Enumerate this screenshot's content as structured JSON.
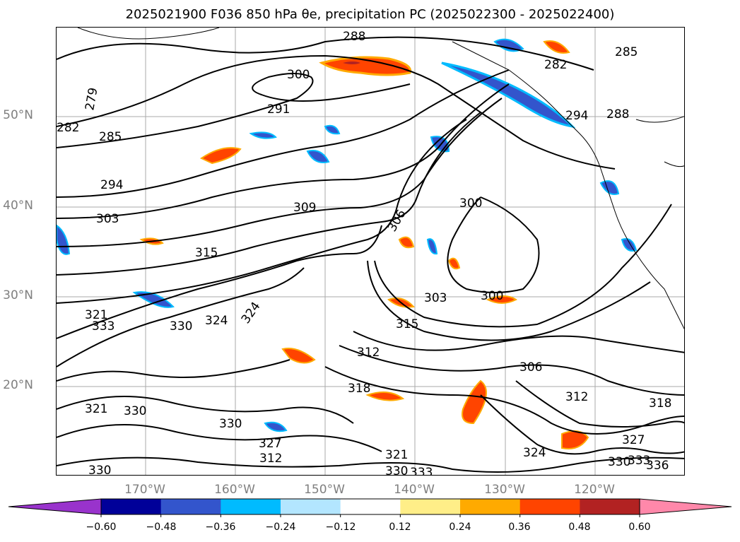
{
  "title": "2025021900 F036 850 hPa θe, precipitation PC (2025022300 - 2025022400)",
  "latitude_labels": [
    "50°N",
    "40°N",
    "30°N",
    "20°N"
  ],
  "longitude_labels": [
    "170°W",
    "160°W",
    "150°W",
    "140°W",
    "130°W",
    "120°W"
  ],
  "colorbar": {
    "ticks": [
      "−0.60",
      "−0.48",
      "−0.36",
      "−0.24",
      "−0.12",
      "0.12",
      "0.24",
      "0.36",
      "0.48",
      "0.60"
    ],
    "colors": [
      "#9933cc",
      "#000099",
      "#3355cc",
      "#00bbff",
      "#b3e6ff",
      "#ffffff",
      "#ffee88",
      "#ffaa00",
      "#ff4400",
      "#b22222",
      "#ff88aa"
    ]
  },
  "contour_labels": [
    "288",
    "300",
    "291",
    "279",
    "282",
    "285",
    "294",
    "303",
    "309",
    "306",
    "315",
    "312",
    "318",
    "321",
    "324",
    "327",
    "330",
    "333",
    "336"
  ],
  "colors": {
    "contour": "#000000",
    "grid": "#aaaaaa",
    "coast": "#000000"
  }
}
